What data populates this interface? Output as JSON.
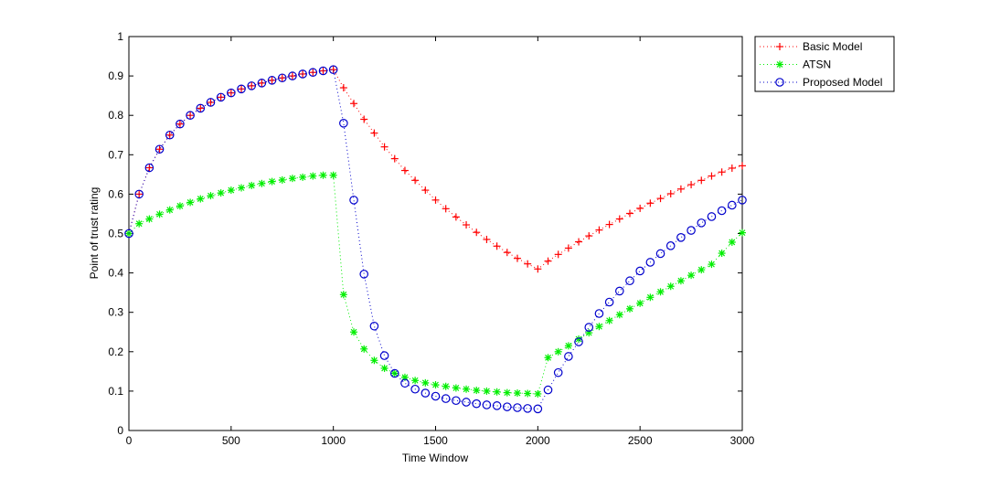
{
  "chart_data": {
    "type": "line",
    "title": "",
    "xlabel": "Time Window",
    "ylabel": "Point of trust rating",
    "xlim": [
      0,
      3000
    ],
    "ylim": [
      0,
      1
    ],
    "xticks": [
      "0",
      "500",
      "1000",
      "1500",
      "2000",
      "2500",
      "3000"
    ],
    "yticks": [
      "0",
      "0.1",
      "0.2",
      "0.3",
      "0.4",
      "0.5",
      "0.6",
      "0.7",
      "0.8",
      "0.9",
      "1"
    ],
    "grid": false,
    "legend_position": "outside-top-right",
    "x": [
      0,
      50,
      100,
      150,
      200,
      250,
      300,
      350,
      400,
      450,
      500,
      550,
      600,
      650,
      700,
      750,
      800,
      850,
      900,
      950,
      1000,
      1050,
      1100,
      1150,
      1200,
      1250,
      1300,
      1350,
      1400,
      1450,
      1500,
      1550,
      1600,
      1650,
      1700,
      1750,
      1800,
      1850,
      1900,
      1950,
      2000,
      2050,
      2100,
      2150,
      2200,
      2250,
      2300,
      2350,
      2400,
      2450,
      2500,
      2550,
      2600,
      2650,
      2700,
      2750,
      2800,
      2850,
      2900,
      2950,
      3000
    ],
    "series": [
      {
        "name": "Basic Model",
        "color": "#ff0000",
        "marker": "plus",
        "values": [
          0.5,
          0.6,
          0.667,
          0.714,
          0.75,
          0.778,
          0.8,
          0.818,
          0.833,
          0.846,
          0.857,
          0.867,
          0.875,
          0.882,
          0.889,
          0.895,
          0.9,
          0.905,
          0.909,
          0.913,
          0.916,
          0.87,
          0.83,
          0.79,
          0.755,
          0.72,
          0.69,
          0.66,
          0.635,
          0.61,
          0.585,
          0.563,
          0.542,
          0.522,
          0.503,
          0.485,
          0.468,
          0.452,
          0.437,
          0.423,
          0.41,
          0.43,
          0.447,
          0.463,
          0.479,
          0.494,
          0.509,
          0.523,
          0.537,
          0.551,
          0.564,
          0.577,
          0.589,
          0.601,
          0.613,
          0.624,
          0.635,
          0.646,
          0.656,
          0.666,
          0.672
        ]
      },
      {
        "name": "ATSN",
        "color": "#00ee00",
        "marker": "star",
        "values": [
          0.5,
          0.525,
          0.537,
          0.549,
          0.56,
          0.57,
          0.579,
          0.588,
          0.596,
          0.603,
          0.61,
          0.616,
          0.622,
          0.627,
          0.632,
          0.636,
          0.64,
          0.643,
          0.646,
          0.648,
          0.648,
          0.345,
          0.25,
          0.207,
          0.178,
          0.158,
          0.145,
          0.135,
          0.127,
          0.121,
          0.116,
          0.112,
          0.108,
          0.105,
          0.102,
          0.1,
          0.098,
          0.096,
          0.095,
          0.094,
          0.093,
          0.185,
          0.2,
          0.215,
          0.232,
          0.248,
          0.264,
          0.279,
          0.294,
          0.309,
          0.323,
          0.338,
          0.352,
          0.366,
          0.38,
          0.394,
          0.408,
          0.422,
          0.45,
          0.478,
          0.502
        ]
      },
      {
        "name": "Proposed Model",
        "color": "#0000cc",
        "marker": "circle",
        "values": [
          0.5,
          0.6,
          0.667,
          0.714,
          0.75,
          0.778,
          0.8,
          0.818,
          0.833,
          0.846,
          0.857,
          0.867,
          0.875,
          0.882,
          0.889,
          0.895,
          0.9,
          0.905,
          0.909,
          0.913,
          0.916,
          0.78,
          0.585,
          0.397,
          0.265,
          0.19,
          0.145,
          0.12,
          0.105,
          0.095,
          0.087,
          0.081,
          0.076,
          0.072,
          0.068,
          0.065,
          0.063,
          0.06,
          0.058,
          0.056,
          0.055,
          0.103,
          0.147,
          0.188,
          0.225,
          0.262,
          0.297,
          0.326,
          0.354,
          0.38,
          0.405,
          0.427,
          0.449,
          0.469,
          0.49,
          0.508,
          0.527,
          0.543,
          0.558,
          0.572,
          0.585
        ]
      }
    ]
  }
}
